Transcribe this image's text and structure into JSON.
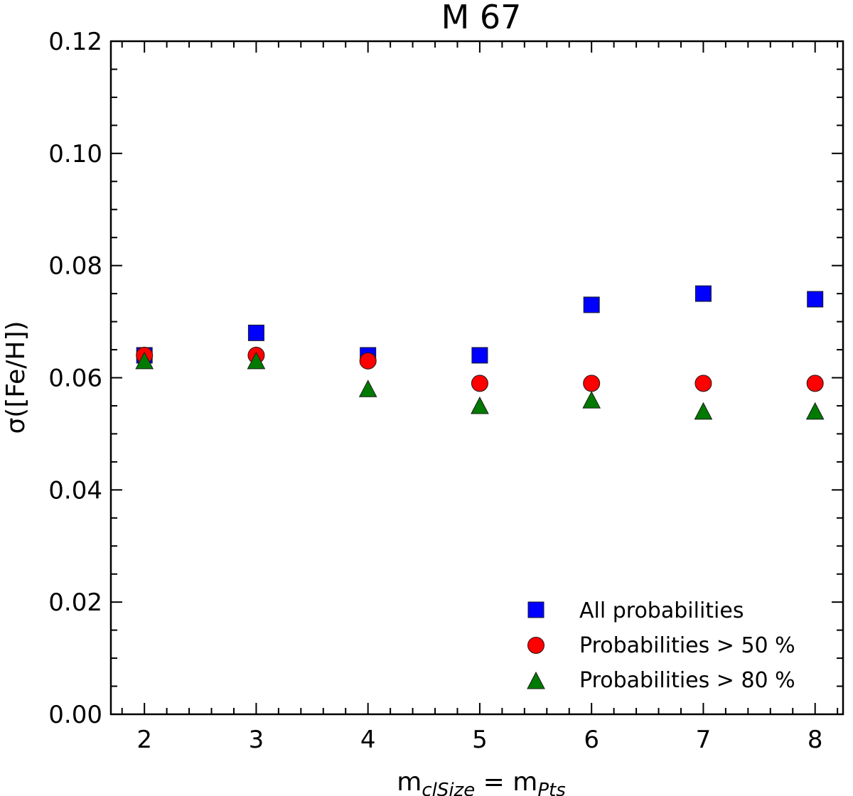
{
  "chart_data": {
    "type": "scatter",
    "title": "M 67",
    "xlabel": {
      "base": "m",
      "sub1": "clSize",
      "eq": " = m",
      "sub2": "Pts"
    },
    "ylabel": "σ([Fe/H])",
    "xlim": [
      1.7,
      8.25
    ],
    "ylim": [
      0.0,
      0.12
    ],
    "x": [
      2,
      3,
      4,
      5,
      6,
      7,
      8
    ],
    "x_tick_labels": [
      "2",
      "3",
      "4",
      "5",
      "6",
      "7",
      "8"
    ],
    "y_ticks": [
      0.0,
      0.02,
      0.04,
      0.06,
      0.08,
      0.1,
      0.12
    ],
    "y_tick_labels": [
      "0.00",
      "0.02",
      "0.04",
      "0.06",
      "0.08",
      "0.10",
      "0.12"
    ],
    "legend_position": "bottom-right",
    "series": [
      {
        "name": "All probabilities",
        "marker": "square",
        "color": "#0000ff",
        "values": [
          0.064,
          0.068,
          0.064,
          0.064,
          0.073,
          0.075,
          0.074
        ]
      },
      {
        "name": "Probabilities > 50 %",
        "marker": "circle",
        "color": "#ff0000",
        "values": [
          0.064,
          0.064,
          0.063,
          0.059,
          0.059,
          0.059,
          0.059
        ]
      },
      {
        "name": "Probabilities > 80 %",
        "marker": "triangle",
        "color": "#007a00",
        "values": [
          0.063,
          0.063,
          0.058,
          0.055,
          0.056,
          0.054,
          0.054
        ]
      }
    ]
  }
}
